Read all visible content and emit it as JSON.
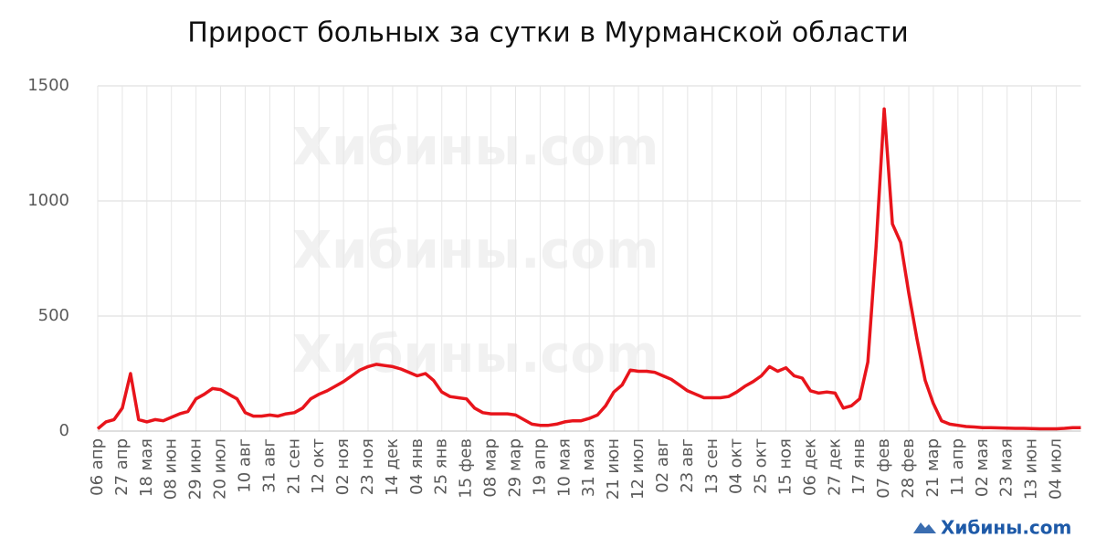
{
  "chart_data": {
    "type": "line",
    "title": "Прирост больных за сутки в Мурманской области",
    "watermark": "Хибины.com",
    "color": "#e8141b",
    "grid": true,
    "categories": [
      "06 апр",
      null,
      null,
      "27 апр",
      null,
      null,
      "18 мая",
      null,
      null,
      "08 июн",
      null,
      null,
      "29 июн",
      null,
      null,
      "20 июл",
      null,
      null,
      "10 авг",
      null,
      null,
      "31 авг",
      null,
      null,
      "21 сен",
      null,
      null,
      "12 окт",
      null,
      null,
      "02 ноя",
      null,
      null,
      "23 ноя",
      null,
      null,
      "14 дек",
      null,
      null,
      "04 янв",
      null,
      null,
      "25 янв",
      null,
      null,
      "15 фев",
      null,
      null,
      "08 мар",
      null,
      null,
      "29 мар",
      null,
      null,
      "19 апр",
      null,
      null,
      "10 мая",
      null,
      null,
      "31 мая",
      null,
      null,
      "21 июн",
      null,
      null,
      "12 июл",
      null,
      null,
      "02 авг",
      null,
      null,
      "23 авг",
      null,
      null,
      "13 сен",
      null,
      null,
      "04 окт",
      null,
      null,
      "25 окт",
      null,
      null,
      "15 ноя",
      null,
      null,
      "06 дек",
      null,
      null,
      "27 дек",
      null,
      null,
      "17 янв",
      null,
      null,
      "07 фев",
      null,
      null,
      "28 фев",
      null,
      null,
      "21 мар",
      null,
      null,
      "11 апр",
      null,
      null,
      "02 мая",
      null,
      null,
      "23 мая",
      null,
      null,
      "13 июн",
      null,
      null,
      "04 июл",
      null,
      null,
      null
    ],
    "values": [
      10,
      40,
      50,
      100,
      250,
      50,
      40,
      50,
      45,
      60,
      75,
      85,
      140,
      160,
      185,
      180,
      160,
      140,
      80,
      65,
      65,
      70,
      65,
      75,
      80,
      100,
      140,
      160,
      175,
      195,
      215,
      240,
      265,
      280,
      290,
      285,
      280,
      270,
      255,
      240,
      250,
      220,
      170,
      150,
      145,
      140,
      100,
      80,
      75,
      75,
      75,
      70,
      50,
      30,
      25,
      25,
      30,
      40,
      45,
      45,
      55,
      70,
      110,
      170,
      200,
      265,
      260,
      260,
      255,
      240,
      225,
      200,
      175,
      160,
      145,
      145,
      145,
      150,
      170,
      195,
      215,
      240,
      280,
      260,
      275,
      240,
      230,
      175,
      165,
      170,
      165,
      100,
      110,
      140,
      300,
      800,
      1400,
      900,
      820,
      600,
      400,
      220,
      120,
      45,
      30,
      25,
      20,
      18,
      15,
      15,
      14,
      13,
      12,
      12,
      11,
      10,
      10,
      10,
      12,
      15,
      15
    ],
    "ylim": [
      0,
      1500
    ],
    "yticks": [
      0,
      500,
      1000,
      1500
    ]
  }
}
